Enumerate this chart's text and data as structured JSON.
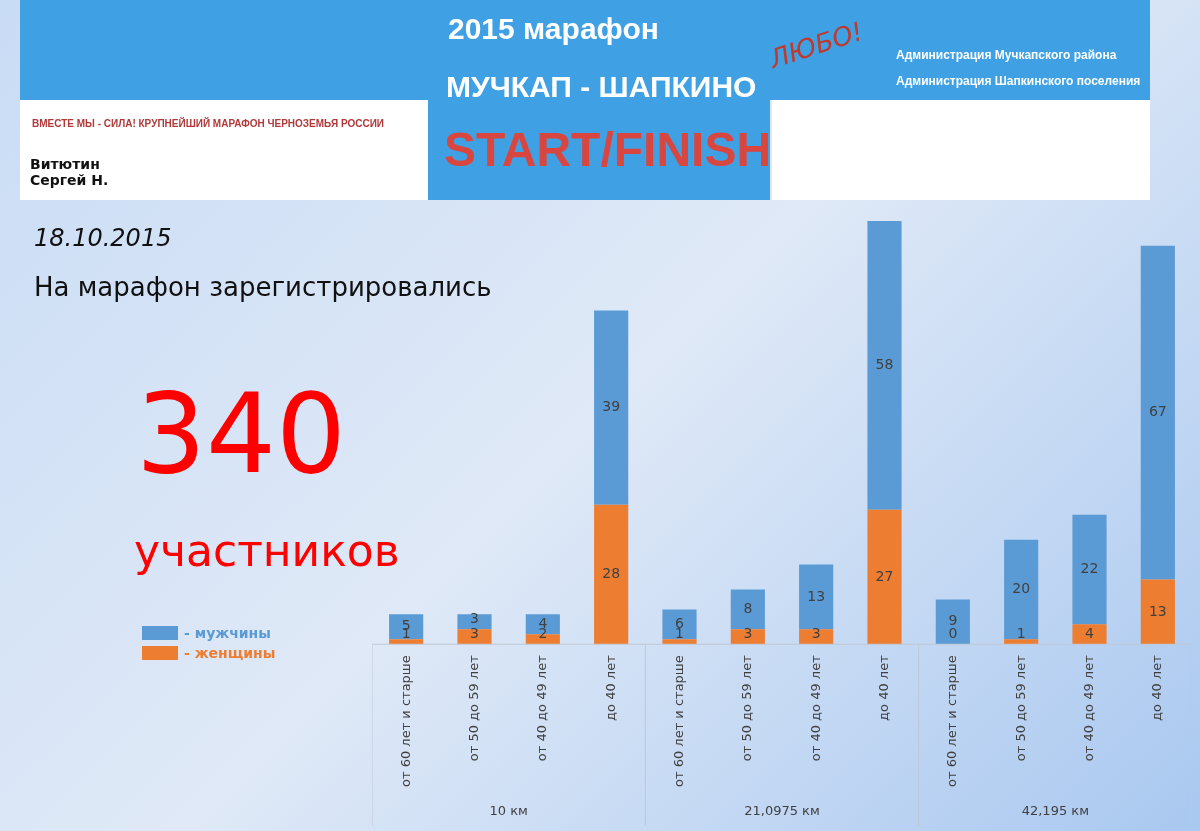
{
  "chart_data": {
    "type": "bar",
    "stacked": true,
    "data_labels": true,
    "legend": "left",
    "categories": [
      "от 60 лет и старше",
      "от 50 до 59 лет",
      "от 40 до 49 лет",
      "до 40 лет",
      "от 60 лет и старше",
      "от 50 до 59 лет",
      "от 40 до 49 лет",
      "до 40 лет",
      "от 60 лет и старше",
      "от 50 до 59 лет",
      "от 40 до 49 лет",
      "до 40 лет"
    ],
    "series": [
      {
        "name": "- женщины",
        "color": "#ed7d31",
        "values": [
          1,
          3,
          2,
          28,
          1,
          3,
          3,
          27,
          0,
          1,
          4,
          13
        ]
      },
      {
        "name": "- мужчины",
        "color": "#5b9bd5",
        "values": [
          5,
          3,
          4,
          39,
          6,
          8,
          13,
          58,
          9,
          20,
          22,
          67
        ]
      }
    ],
    "annotations": [
      "2015 марафон",
      "МУЧКАП - ШАПКИНО",
      "START/FINISH",
      "ВМЕСТЕ МЫ - СИЛА! КРУПНЕЙШИЙ МАРАФОН ЧЕРНОЗЕМЬЯ РОССИИ",
      "ЛЮБО!",
      "Администрация Мучкапского района",
      "Администрация Шапкинского поселения",
      "Витютин Сергей Н.",
      "18.10.2015",
      "На марафон зарегистрировались",
      "340",
      "участников",
      "10 км",
      "21,0975 км",
      "42,195 км"
    ]
  }
}
